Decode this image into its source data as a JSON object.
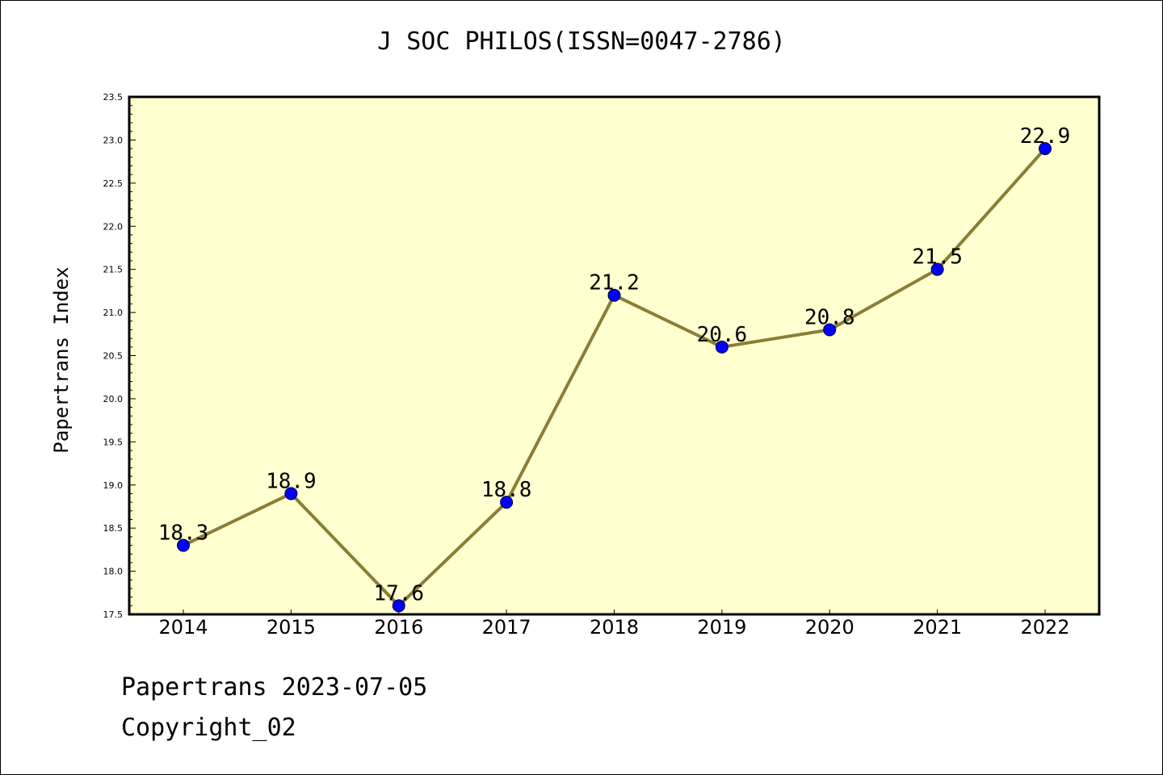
{
  "header": {
    "title": "J SOC PHILOS(ISSN=0047-2786)"
  },
  "footer": {
    "line1": "Papertrans 2023-07-05",
    "line2": "Copyright_02"
  },
  "colors": {
    "plot_background": "#ffffd0",
    "line": "#8b7d35",
    "marker": "#0000ff",
    "axis": "#000000"
  },
  "chart_data": {
    "type": "line",
    "title": "J SOC PHILOS(ISSN=0047-2786)",
    "xlabel": "",
    "ylabel": "Papertrans Index",
    "categories": [
      "2014",
      "2015",
      "2016",
      "2017",
      "2018",
      "2019",
      "2020",
      "2021",
      "2022"
    ],
    "series": [
      {
        "values": [
          18.3,
          18.9,
          17.6,
          18.8,
          21.2,
          20.6,
          20.8,
          21.5,
          22.9
        ],
        "labels": [
          "18.3",
          "18.9",
          "17.6",
          "18.8",
          "21.2",
          "20.6",
          "20.8",
          "21.5",
          "22.9"
        ]
      }
    ],
    "ylim": [
      17.5,
      23.5
    ],
    "yticks": [
      "17.5",
      "18.0",
      "18.5",
      "19.0",
      "19.5",
      "20.0",
      "20.5",
      "21.0",
      "21.5",
      "22.0",
      "22.5",
      "23.0",
      "23.5"
    ],
    "grid": false,
    "legend": "none"
  }
}
